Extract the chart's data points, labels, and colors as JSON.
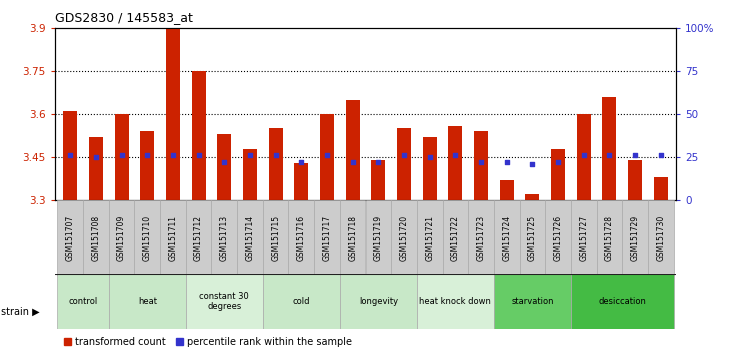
{
  "title": "GDS2830 / 145583_at",
  "samples": [
    "GSM151707",
    "GSM151708",
    "GSM151709",
    "GSM151710",
    "GSM151711",
    "GSM151712",
    "GSM151713",
    "GSM151714",
    "GSM151715",
    "GSM151716",
    "GSM151717",
    "GSM151718",
    "GSM151719",
    "GSM151720",
    "GSM151721",
    "GSM151722",
    "GSM151723",
    "GSM151724",
    "GSM151725",
    "GSM151726",
    "GSM151727",
    "GSM151728",
    "GSM151729",
    "GSM151730"
  ],
  "bar_values": [
    3.61,
    3.52,
    3.6,
    3.54,
    3.9,
    3.75,
    3.53,
    3.48,
    3.55,
    3.43,
    3.6,
    3.65,
    3.44,
    3.55,
    3.52,
    3.56,
    3.54,
    3.37,
    3.32,
    3.48,
    3.6,
    3.66,
    3.44,
    3.38
  ],
  "percentile_values": [
    26,
    25,
    26,
    26,
    26,
    26,
    22,
    26,
    26,
    22,
    26,
    22,
    22,
    26,
    25,
    26,
    22,
    22,
    21,
    22,
    26,
    26,
    26,
    26
  ],
  "groups": [
    {
      "label": "control",
      "start": 0,
      "end": 2,
      "color": "#c8e8c8"
    },
    {
      "label": "heat",
      "start": 2,
      "end": 5,
      "color": "#c8e8c8"
    },
    {
      "label": "constant 30\ndegrees",
      "start": 5,
      "end": 8,
      "color": "#d8f0d8"
    },
    {
      "label": "cold",
      "start": 8,
      "end": 11,
      "color": "#c8e8c8"
    },
    {
      "label": "longevity",
      "start": 11,
      "end": 14,
      "color": "#c8e8c8"
    },
    {
      "label": "heat knock down",
      "start": 14,
      "end": 17,
      "color": "#d8f0d8"
    },
    {
      "label": "starvation",
      "start": 17,
      "end": 20,
      "color": "#66cc66"
    },
    {
      "label": "desiccation",
      "start": 20,
      "end": 24,
      "color": "#44bb44"
    }
  ],
  "ylim_left": [
    3.3,
    3.9
  ],
  "yticks_left": [
    3.3,
    3.45,
    3.6,
    3.75,
    3.9
  ],
  "ylim_right": [
    0,
    100
  ],
  "yticks_right": [
    0,
    25,
    50,
    75,
    100
  ],
  "bar_color": "#cc2200",
  "dot_color": "#3333cc",
  "bar_width": 0.55,
  "background_color": "#ffffff",
  "grid_lines": [
    3.45,
    3.6,
    3.75
  ]
}
